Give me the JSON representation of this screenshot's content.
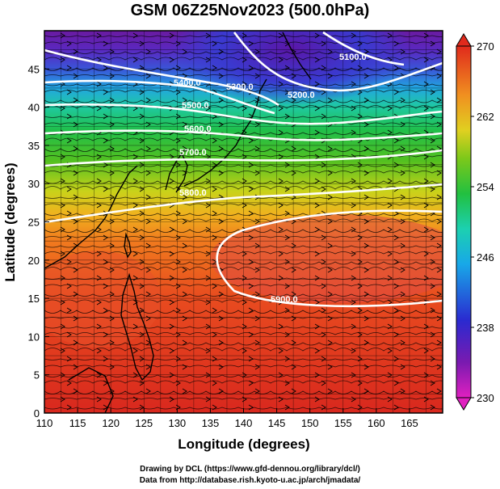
{
  "title": "GSM 06Z25Nov2023 (500.0hPa)",
  "xlabel": "Longitude (degrees)",
  "ylabel": "Latitude  (degrees)",
  "xticks": [
    "110",
    "115",
    "120",
    "125",
    "130",
    "135",
    "140",
    "145",
    "150",
    "155",
    "160",
    "165"
  ],
  "yticks": [
    "0",
    "5",
    "10",
    "15",
    "20",
    "25",
    "30",
    "35",
    "40",
    "45"
  ],
  "colorbar": {
    "ticks": [
      "270",
      "262",
      "254",
      "246",
      "238",
      "230"
    ],
    "min": 230,
    "max": 270
  },
  "contour_labels": [
    "5100.0",
    "5200.0",
    "5300.0",
    "5400.0",
    "5500.0",
    "5600.0",
    "5700.0",
    "5800.0",
    "5900.0"
  ],
  "credits": {
    "line1": "Drawing by DCL (https://www.gfd-dennou.org/library/dcl/)",
    "line2": "Data from http://database.rish.kyoto-u.ac.jp/arch/jmadata/"
  },
  "map": {
    "lon_range": [
      110,
      170
    ],
    "lat_range": [
      0,
      50
    ]
  }
}
